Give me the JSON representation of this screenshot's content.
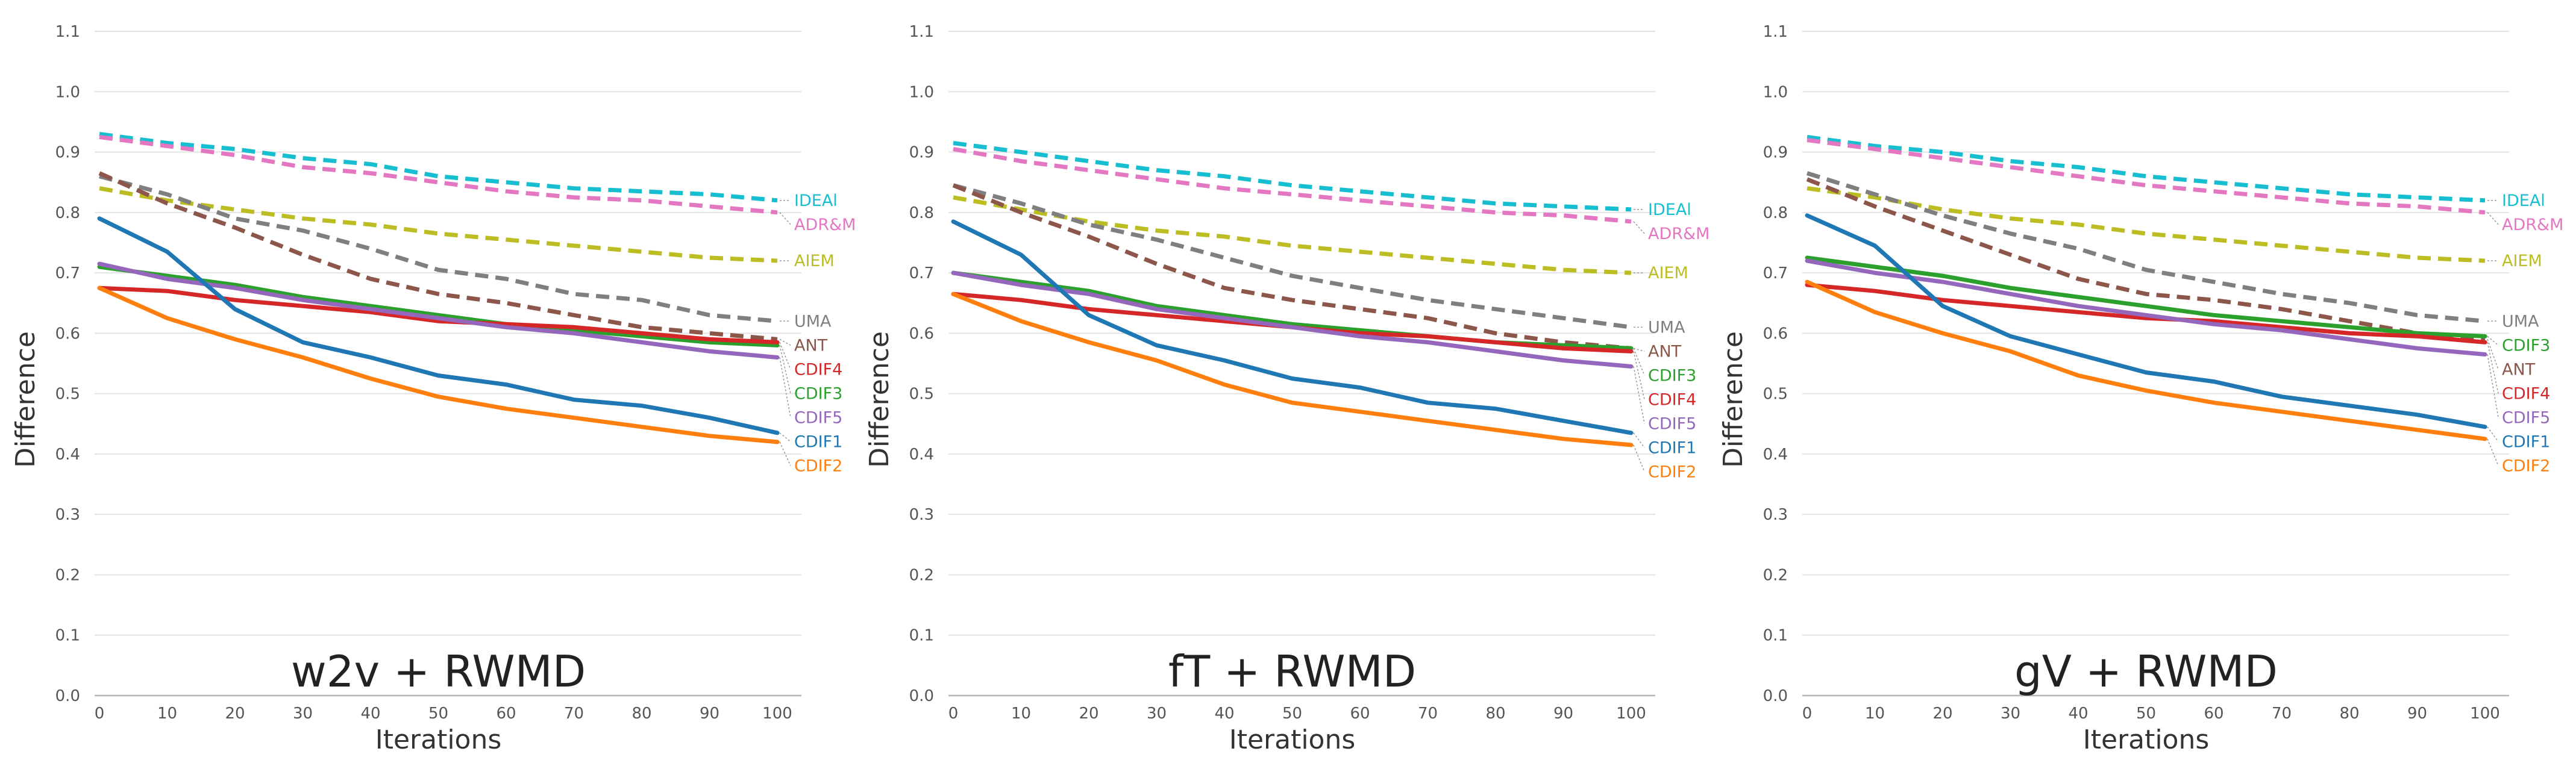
{
  "chart_data": [
    {
      "type": "line",
      "title": "w2v + RWMD",
      "xlabel": "Iterations",
      "ylabel": "Difference",
      "x": [
        0,
        10,
        20,
        30,
        40,
        50,
        60,
        70,
        80,
        90,
        100
      ],
      "xlim": [
        0,
        100
      ],
      "ylim": [
        0,
        1.1
      ],
      "yticks": [
        "0.0",
        "0.1",
        "0.2",
        "0.3",
        "0.4",
        "0.5",
        "0.6",
        "0.7",
        "0.8",
        "0.9",
        "1.0",
        "1.1"
      ],
      "xticks": [
        "0",
        "10",
        "20",
        "30",
        "40",
        "50",
        "60",
        "70",
        "80",
        "90",
        "100"
      ],
      "grid": true,
      "series": [
        {
          "name": "IDEAl",
          "color": "#17becf",
          "dashed": true,
          "values": [
            0.93,
            0.915,
            0.905,
            0.89,
            0.88,
            0.86,
            0.85,
            0.84,
            0.835,
            0.83,
            0.82
          ]
        },
        {
          "name": "ADR&M",
          "color": "#e377c2",
          "dashed": true,
          "values": [
            0.925,
            0.91,
            0.895,
            0.875,
            0.865,
            0.85,
            0.835,
            0.825,
            0.82,
            0.81,
            0.8
          ]
        },
        {
          "name": "AIEM",
          "color": "#bcbd22",
          "dashed": true,
          "values": [
            0.84,
            0.82,
            0.805,
            0.79,
            0.78,
            0.765,
            0.755,
            0.745,
            0.735,
            0.725,
            0.72
          ]
        },
        {
          "name": "UMA",
          "color": "#7f7f7f",
          "dashed": true,
          "values": [
            0.86,
            0.83,
            0.79,
            0.77,
            0.74,
            0.705,
            0.69,
            0.665,
            0.655,
            0.63,
            0.62
          ]
        },
        {
          "name": "ANT",
          "color": "#8c564b",
          "dashed": true,
          "values": [
            0.865,
            0.815,
            0.775,
            0.73,
            0.69,
            0.665,
            0.65,
            0.63,
            0.61,
            0.6,
            0.59
          ]
        },
        {
          "name": "CDIF3",
          "color": "#2ca02c",
          "dashed": false,
          "values": [
            0.71,
            0.695,
            0.68,
            0.66,
            0.645,
            0.63,
            0.615,
            0.605,
            0.595,
            0.585,
            0.58
          ]
        },
        {
          "name": "CDIF4",
          "color": "#d62728",
          "dashed": false,
          "values": [
            0.675,
            0.67,
            0.655,
            0.645,
            0.635,
            0.62,
            0.615,
            0.61,
            0.6,
            0.59,
            0.585
          ]
        },
        {
          "name": "CDIF5",
          "color": "#9467bd",
          "dashed": false,
          "values": [
            0.715,
            0.69,
            0.675,
            0.655,
            0.64,
            0.625,
            0.61,
            0.6,
            0.585,
            0.57,
            0.56
          ]
        },
        {
          "name": "CDIF1",
          "color": "#1f77b4",
          "dashed": false,
          "values": [
            0.79,
            0.735,
            0.64,
            0.585,
            0.56,
            0.53,
            0.515,
            0.49,
            0.48,
            0.46,
            0.435
          ]
        },
        {
          "name": "CDIF2",
          "color": "#ff7f0e",
          "dashed": false,
          "values": [
            0.675,
            0.625,
            0.59,
            0.56,
            0.525,
            0.495,
            0.475,
            0.46,
            0.445,
            0.43,
            0.42
          ]
        }
      ]
    },
    {
      "type": "line",
      "title": "fT + RWMD",
      "xlabel": "Iterations",
      "ylabel": "Difference",
      "x": [
        0,
        10,
        20,
        30,
        40,
        50,
        60,
        70,
        80,
        90,
        100
      ],
      "xlim": [
        0,
        100
      ],
      "ylim": [
        0,
        1.1
      ],
      "yticks": [
        "0.0",
        "0.1",
        "0.2",
        "0.3",
        "0.4",
        "0.5",
        "0.6",
        "0.7",
        "0.8",
        "0.9",
        "1.0",
        "1.1"
      ],
      "xticks": [
        "0",
        "10",
        "20",
        "30",
        "40",
        "50",
        "60",
        "70",
        "80",
        "90",
        "100"
      ],
      "grid": true,
      "series": [
        {
          "name": "IDEAl",
          "color": "#17becf",
          "dashed": true,
          "values": [
            0.915,
            0.9,
            0.885,
            0.87,
            0.86,
            0.845,
            0.835,
            0.825,
            0.815,
            0.81,
            0.805
          ]
        },
        {
          "name": "ADR&M",
          "color": "#e377c2",
          "dashed": true,
          "values": [
            0.905,
            0.885,
            0.87,
            0.855,
            0.84,
            0.83,
            0.82,
            0.81,
            0.8,
            0.795,
            0.785
          ]
        },
        {
          "name": "AIEM",
          "color": "#bcbd22",
          "dashed": true,
          "values": [
            0.825,
            0.805,
            0.785,
            0.77,
            0.76,
            0.745,
            0.735,
            0.725,
            0.715,
            0.705,
            0.7
          ]
        },
        {
          "name": "UMA",
          "color": "#7f7f7f",
          "dashed": true,
          "values": [
            0.845,
            0.815,
            0.78,
            0.755,
            0.725,
            0.695,
            0.675,
            0.655,
            0.64,
            0.625,
            0.61
          ]
        },
        {
          "name": "ANT",
          "color": "#8c564b",
          "dashed": true,
          "values": [
            0.845,
            0.8,
            0.76,
            0.715,
            0.675,
            0.655,
            0.64,
            0.625,
            0.6,
            0.585,
            0.575
          ]
        },
        {
          "name": "CDIF3",
          "color": "#2ca02c",
          "dashed": false,
          "values": [
            0.7,
            0.685,
            0.67,
            0.645,
            0.63,
            0.615,
            0.605,
            0.595,
            0.585,
            0.58,
            0.575
          ]
        },
        {
          "name": "CDIF4",
          "color": "#d62728",
          "dashed": false,
          "values": [
            0.665,
            0.655,
            0.64,
            0.63,
            0.62,
            0.61,
            0.6,
            0.595,
            0.585,
            0.575,
            0.57
          ]
        },
        {
          "name": "CDIF5",
          "color": "#9467bd",
          "dashed": false,
          "values": [
            0.7,
            0.68,
            0.665,
            0.64,
            0.625,
            0.61,
            0.595,
            0.585,
            0.57,
            0.555,
            0.545
          ]
        },
        {
          "name": "CDIF1",
          "color": "#1f77b4",
          "dashed": false,
          "values": [
            0.785,
            0.73,
            0.63,
            0.58,
            0.555,
            0.525,
            0.51,
            0.485,
            0.475,
            0.455,
            0.435
          ]
        },
        {
          "name": "CDIF2",
          "color": "#ff7f0e",
          "dashed": false,
          "values": [
            0.665,
            0.62,
            0.585,
            0.555,
            0.515,
            0.485,
            0.47,
            0.455,
            0.44,
            0.425,
            0.415
          ]
        }
      ]
    },
    {
      "type": "line",
      "title": "gV + RWMD",
      "xlabel": "Iterations",
      "ylabel": "Difference",
      "x": [
        0,
        10,
        20,
        30,
        40,
        50,
        60,
        70,
        80,
        90,
        100
      ],
      "xlim": [
        0,
        100
      ],
      "ylim": [
        0,
        1.1
      ],
      "yticks": [
        "0.0",
        "0.1",
        "0.2",
        "0.3",
        "0.4",
        "0.5",
        "0.6",
        "0.7",
        "0.8",
        "0.9",
        "1.0",
        "1.1"
      ],
      "xticks": [
        "0",
        "10",
        "20",
        "30",
        "40",
        "50",
        "60",
        "70",
        "80",
        "90",
        "100"
      ],
      "grid": true,
      "series": [
        {
          "name": "IDEAl",
          "color": "#17becf",
          "dashed": true,
          "values": [
            0.925,
            0.91,
            0.9,
            0.885,
            0.875,
            0.86,
            0.85,
            0.84,
            0.83,
            0.825,
            0.82
          ]
        },
        {
          "name": "ADR&M",
          "color": "#e377c2",
          "dashed": true,
          "values": [
            0.92,
            0.905,
            0.89,
            0.875,
            0.86,
            0.845,
            0.835,
            0.825,
            0.815,
            0.81,
            0.8
          ]
        },
        {
          "name": "AIEM",
          "color": "#bcbd22",
          "dashed": true,
          "values": [
            0.84,
            0.825,
            0.805,
            0.79,
            0.78,
            0.765,
            0.755,
            0.745,
            0.735,
            0.725,
            0.72
          ]
        },
        {
          "name": "UMA",
          "color": "#7f7f7f",
          "dashed": true,
          "values": [
            0.865,
            0.83,
            0.795,
            0.765,
            0.74,
            0.705,
            0.685,
            0.665,
            0.65,
            0.63,
            0.62
          ]
        },
        {
          "name": "ANT",
          "color": "#8c564b",
          "dashed": true,
          "values": [
            0.855,
            0.81,
            0.77,
            0.73,
            0.69,
            0.665,
            0.655,
            0.64,
            0.62,
            0.6,
            0.59
          ]
        },
        {
          "name": "CDIF3",
          "color": "#2ca02c",
          "dashed": false,
          "values": [
            0.725,
            0.71,
            0.695,
            0.675,
            0.66,
            0.645,
            0.63,
            0.62,
            0.61,
            0.6,
            0.595
          ]
        },
        {
          "name": "CDIF4",
          "color": "#d62728",
          "dashed": false,
          "values": [
            0.68,
            0.67,
            0.655,
            0.645,
            0.635,
            0.625,
            0.62,
            0.61,
            0.6,
            0.595,
            0.585
          ]
        },
        {
          "name": "CDIF5",
          "color": "#9467bd",
          "dashed": false,
          "values": [
            0.72,
            0.7,
            0.685,
            0.665,
            0.645,
            0.63,
            0.615,
            0.605,
            0.59,
            0.575,
            0.565
          ]
        },
        {
          "name": "CDIF1",
          "color": "#1f77b4",
          "dashed": false,
          "values": [
            0.795,
            0.745,
            0.645,
            0.595,
            0.565,
            0.535,
            0.52,
            0.495,
            0.48,
            0.465,
            0.445
          ]
        },
        {
          "name": "CDIF2",
          "color": "#ff7f0e",
          "dashed": false,
          "values": [
            0.685,
            0.635,
            0.6,
            0.57,
            0.53,
            0.505,
            0.485,
            0.47,
            0.455,
            0.44,
            0.425
          ]
        }
      ]
    }
  ]
}
